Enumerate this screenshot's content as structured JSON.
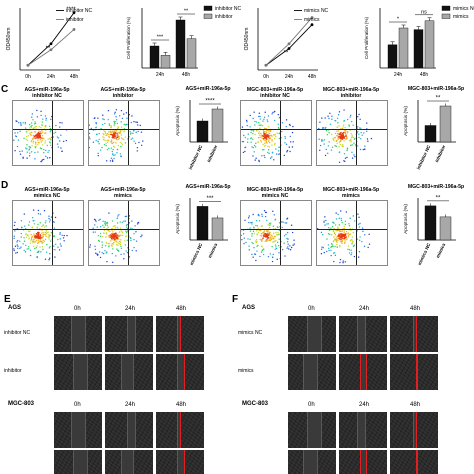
{
  "panel_letters": {
    "C": "C",
    "D": "D",
    "E": "E",
    "F": "F"
  },
  "panel_A": {
    "legend": [
      "inhibitor NC",
      "inhibitor"
    ],
    "ylabel": "OD450nm",
    "xticks": [
      "0h",
      "24h",
      "48h"
    ],
    "sig": [
      "**",
      "****"
    ]
  },
  "panel_A2": {
    "legend": [
      "inhibitor NC",
      "inhibitor"
    ],
    "ylabel": "Cell Proliferation (%)",
    "xticks": [
      "24h",
      "48h"
    ],
    "sig": [
      "***",
      "**"
    ]
  },
  "panel_B": {
    "legend": [
      "mimics NC",
      "mimics"
    ],
    "ylabel": "OD450nm",
    "xticks": [
      "0h",
      "24h",
      "48h"
    ],
    "sig": [
      "**"
    ]
  },
  "panel_B2": {
    "legend": [
      "mimics NC",
      "mimics"
    ],
    "ylabel": "Cell Proliferation (%)",
    "xticks": [
      "24h",
      "48h"
    ],
    "sig": [
      "*",
      "ns"
    ]
  },
  "panel_C": {
    "flow_titles": [
      "AGS+miR-196a-5p\ninhibitor NC",
      "AGS+miR-196a-5p\ninhibitor",
      "MGC-803+miR-196a-5p\ninhibitor NC",
      "MGC-803+miR-196a-5p\ninhibitor"
    ],
    "bar1_title": "AGS+miR-196a-5p",
    "bar2_title": "MGC-803+miR-196a-5p",
    "ylabel": "Apoptosis (%)",
    "categories": [
      "inhibitor NC",
      "inhibitor"
    ],
    "sig1": "****",
    "sig2": "**"
  },
  "panel_D": {
    "flow_titles": [
      "AGS+miR-196a-5p\nmimics NC",
      "AGS+miR-196a-5p\nmimics",
      "MGC-803+miR-196a-5p\nmimics NC",
      "MGC-803+miR-196a-5p\nmimics"
    ],
    "bar1_title": "AGS+miR-196a-5p",
    "bar2_title": "MGC-803+miR-196a-5p",
    "ylabel": "Apoptosis (%)",
    "categories": [
      "mimics NC",
      "mimics"
    ],
    "sig1": "***",
    "sig2": "**"
  },
  "panel_E": {
    "cell_line_1": "AGS",
    "cell_line_2": "MGC-803",
    "time_labels": [
      "0h",
      "24h",
      "48h"
    ],
    "rows": [
      "inhibitor NC",
      "inhibitor"
    ]
  },
  "panel_F": {
    "cell_line_1": "AGS",
    "cell_line_2": "MGC-803",
    "time_labels": [
      "0h",
      "24h",
      "48h"
    ],
    "rows": [
      "mimics NC",
      "mimics"
    ]
  },
  "colors": {
    "black_bar": "#111111",
    "grey_bar": "#a8a8a8",
    "red_line": "#e02020"
  },
  "chart_data": [
    {
      "type": "line",
      "ylabel": "OD450nm",
      "x": [
        "0h",
        "24h",
        "48h"
      ],
      "series": [
        {
          "name": "inhibitor NC",
          "values": [
            0.2,
            1.1,
            2.4
          ]
        },
        {
          "name": "inhibitor",
          "values": [
            0.2,
            0.85,
            1.7
          ]
        }
      ]
    },
    {
      "type": "bar",
      "ylabel": "Cell Proliferation (%)",
      "categories": [
        "24h",
        "48h"
      ],
      "series": [
        {
          "name": "inhibitor NC",
          "values": [
            3.3,
            7.2
          ]
        },
        {
          "name": "inhibitor",
          "values": [
            1.9,
            4.4
          ]
        }
      ]
    },
    {
      "type": "line",
      "ylabel": "OD450nm",
      "x": [
        "0h",
        "24h",
        "48h"
      ],
      "series": [
        {
          "name": "mimics NC",
          "values": [
            0.2,
            0.9,
            1.9
          ]
        },
        {
          "name": "mimics",
          "values": [
            0.2,
            1.1,
            2.2
          ]
        }
      ]
    },
    {
      "type": "bar",
      "ylabel": "Cell Proliferation (%)",
      "categories": [
        "24h",
        "48h"
      ],
      "series": [
        {
          "name": "mimics NC",
          "values": [
            2.9,
            4.8
          ]
        },
        {
          "name": "mimics",
          "values": [
            5.0,
            5.9
          ]
        }
      ]
    },
    {
      "type": "bar",
      "ylabel": "Apoptosis (%)",
      "categories": [
        "inhibitor NC",
        "inhibitor"
      ],
      "values": [
        14,
        22
      ]
    },
    {
      "type": "bar",
      "ylabel": "Apoptosis (%)",
      "categories": [
        "inhibitor NC",
        "inhibitor"
      ],
      "values": [
        11,
        24
      ]
    },
    {
      "type": "bar",
      "ylabel": "Apoptosis (%)",
      "categories": [
        "mimics NC",
        "mimics"
      ],
      "values": [
        16,
        10.5
      ]
    },
    {
      "type": "bar",
      "ylabel": "Apoptosis (%)",
      "categories": [
        "mimics NC",
        "mimics"
      ],
      "values": [
        13,
        8.8
      ]
    }
  ]
}
